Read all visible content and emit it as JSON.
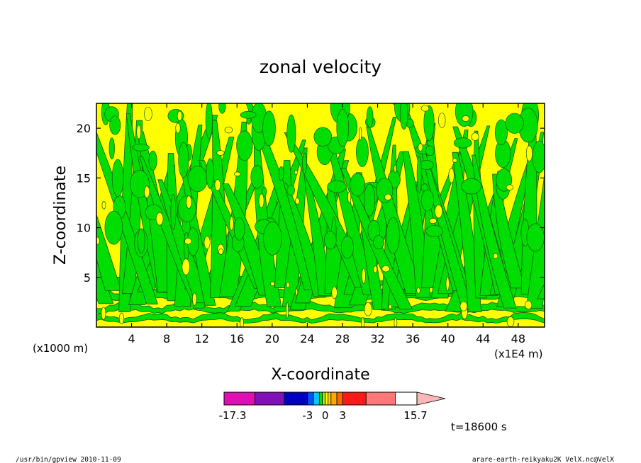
{
  "chart_data": {
    "type": "heatmap",
    "title": "zonal velocity",
    "xlabel": "X-coordinate",
    "ylabel": "Z-coordinate",
    "x_unit": "(x1E4 m)",
    "y_unit": "(x1000 m)",
    "xlim": [
      0,
      51
    ],
    "ylim": [
      0,
      22.5
    ],
    "x_ticks": [
      4,
      8,
      12,
      16,
      20,
      24,
      28,
      32,
      36,
      40,
      44,
      48
    ],
    "y_ticks": [
      5,
      10,
      15,
      20
    ],
    "x_tick_labels": [
      "4",
      "8",
      "12",
      "16",
      "20",
      "24",
      "28",
      "32",
      "36",
      "40",
      "44",
      "48"
    ],
    "y_tick_labels": [
      "5",
      "10",
      "15",
      "20"
    ],
    "contour_fill_colors": [
      "#00dd00",
      "#ffff00"
    ],
    "colorbar": {
      "min": -17.3,
      "max": 15.7,
      "colors": [
        "#e010b0",
        "#8010b8",
        "#0000c0",
        "#0050ff",
        "#00c8ff",
        "#00dd00",
        "#a0f000",
        "#ffff00",
        "#ffd000",
        "#ffa800",
        "#ff6a00",
        "#ff1a1a",
        "#ff7878",
        "#ffb8b8"
      ],
      "tick_labels": [
        {
          "value": -17.3,
          "text": "-17.3"
        },
        {
          "value": -3,
          "text": "-3"
        },
        {
          "value": 0,
          "text": "0"
        },
        {
          "value": 3,
          "text": "3"
        },
        {
          "value": 15.7,
          "text": "15.7"
        }
      ]
    },
    "time_label": "t=18600 s"
  },
  "footer": {
    "left": "/usr/bin/gpview   2010-11-09",
    "right": "arare-earth-reikyaku2K_VelX.nc@VelX"
  }
}
